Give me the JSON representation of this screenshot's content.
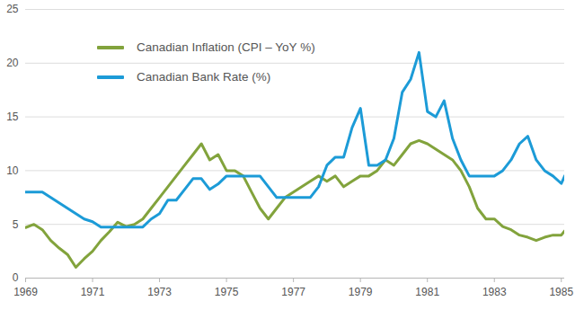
{
  "chart_data": {
    "type": "line",
    "x": [
      1969.0,
      1969.25,
      1969.5,
      1969.75,
      1970.0,
      1970.25,
      1970.5,
      1970.75,
      1971.0,
      1971.25,
      1971.5,
      1971.75,
      1972.0,
      1972.25,
      1972.5,
      1972.75,
      1973.0,
      1973.25,
      1973.5,
      1973.75,
      1974.0,
      1974.25,
      1974.5,
      1974.75,
      1975.0,
      1975.25,
      1975.5,
      1975.75,
      1976.0,
      1976.25,
      1976.5,
      1976.75,
      1977.0,
      1977.25,
      1977.5,
      1977.75,
      1978.0,
      1978.25,
      1978.5,
      1978.75,
      1979.0,
      1979.25,
      1979.5,
      1979.75,
      1980.0,
      1980.25,
      1980.5,
      1980.75,
      1981.0,
      1981.25,
      1981.5,
      1981.75,
      1982.0,
      1982.25,
      1982.5,
      1982.75,
      1983.0,
      1983.25,
      1983.5,
      1983.75,
      1984.0,
      1984.25,
      1984.5,
      1984.75,
      1985.0,
      1985.1
    ],
    "series": [
      {
        "name": "Canadian Inflation (CPI – YoY %)",
        "color": "#82a33c",
        "values": [
          4.7,
          5.0,
          4.5,
          3.5,
          2.8,
          2.2,
          1.0,
          1.8,
          2.5,
          3.5,
          4.3,
          5.2,
          4.8,
          5.0,
          5.5,
          6.5,
          7.5,
          8.5,
          9.5,
          10.5,
          11.5,
          12.5,
          11.0,
          11.5,
          10.0,
          10.0,
          9.5,
          8.0,
          6.5,
          5.5,
          6.5,
          7.5,
          8.0,
          8.5,
          9.0,
          9.5,
          9.0,
          9.5,
          8.5,
          9.0,
          9.5,
          9.5,
          10.0,
          11.0,
          10.5,
          11.5,
          12.5,
          12.8,
          12.5,
          12.0,
          11.5,
          11.0,
          10.0,
          8.5,
          6.5,
          5.5,
          5.5,
          4.8,
          4.5,
          4.0,
          3.8,
          3.5,
          3.8,
          4.0,
          4.0,
          4.4
        ]
      },
      {
        "name": "Canadian Bank Rate (%)",
        "color": "#1c9bd7",
        "values": [
          8.0,
          8.0,
          8.0,
          7.5,
          7.0,
          6.5,
          6.0,
          5.5,
          5.25,
          4.75,
          4.75,
          4.75,
          4.75,
          4.75,
          4.75,
          5.5,
          6.0,
          7.25,
          7.25,
          8.25,
          9.25,
          9.25,
          8.25,
          8.75,
          9.5,
          9.5,
          9.5,
          9.5,
          9.5,
          8.5,
          7.5,
          7.5,
          7.5,
          7.5,
          7.5,
          8.5,
          10.5,
          11.25,
          11.25,
          14.0,
          15.8,
          10.5,
          10.5,
          11.0,
          13.0,
          17.3,
          18.5,
          21.0,
          15.5,
          15.0,
          16.5,
          13.0,
          11.0,
          9.5,
          9.5,
          9.5,
          9.5,
          10.0,
          11.0,
          12.5,
          13.2,
          11.0,
          10.0,
          9.5,
          8.8,
          9.5
        ]
      }
    ],
    "xlim": [
      1969,
      1985.1
    ],
    "xticks": [
      1969,
      1971,
      1973,
      1975,
      1977,
      1979,
      1981,
      1983,
      1985
    ],
    "ylim": [
      0,
      25
    ],
    "yticks": [
      0,
      5,
      10,
      15,
      20,
      25
    ],
    "grid": true,
    "legend": "top-left"
  }
}
